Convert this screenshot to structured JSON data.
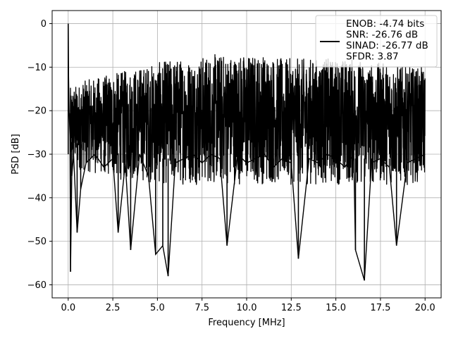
{
  "chart_data": {
    "type": "line",
    "title": "",
    "xlabel": "Frequency [MHz]",
    "ylabel": "PSD [dB]",
    "xlim": [
      -0.9,
      20.9
    ],
    "ylim": [
      -63,
      3
    ],
    "xticks": [
      0.0,
      2.5,
      5.0,
      7.5,
      10.0,
      12.5,
      15.0,
      17.5,
      20.0
    ],
    "xtick_labels": [
      "0.0",
      "2.5",
      "5.0",
      "7.5",
      "10.0",
      "12.5",
      "15.0",
      "17.5",
      "20.0"
    ],
    "yticks": [
      0,
      -10,
      -20,
      -30,
      -40,
      -50,
      -60
    ],
    "ytick_labels": [
      "0",
      "−10",
      "−20",
      "−30",
      "−40",
      "−50",
      "−60"
    ],
    "grid": true,
    "legend_position": "top-right",
    "series": [
      {
        "name": "ENOB: -4.74 bits\nSNR: -26.76 dB\nSINAD: -26.77 dB\nSFDR: 3.87",
        "legend_lines": [
          "ENOB: -4.74 bits",
          "SNR: -26.76 dB",
          "SINAD: -26.77 dB",
          "SFDR: 3.87"
        ],
        "color": "#000000",
        "x": [
          0.0,
          0.02,
          0.05,
          0.1,
          0.13,
          0.2,
          0.3,
          0.5,
          0.7,
          1.0,
          1.5,
          2.0,
          2.5,
          2.8,
          3.2,
          3.5,
          4.0,
          4.5,
          4.9,
          5.3,
          5.6,
          6.0,
          6.5,
          7.0,
          7.5,
          8.0,
          8.5,
          8.9,
          9.5,
          10.0,
          10.5,
          11.0,
          11.5,
          12.0,
          12.5,
          12.9,
          13.5,
          14.0,
          14.5,
          15.0,
          15.5,
          16.0,
          16.1,
          16.6,
          17.0,
          17.5,
          18.0,
          18.4,
          19.0,
          19.5,
          20.0
        ],
        "y": [
          0,
          -12,
          -20,
          -26,
          -57,
          -35,
          -30,
          -48,
          -38,
          -32,
          -30,
          -33,
          -31,
          -48,
          -32,
          -52,
          -30,
          -35,
          -53,
          -51,
          -58,
          -32,
          -31,
          -30,
          -32,
          -30,
          -31,
          -51,
          -30,
          -32,
          -31,
          -30,
          -33,
          -31,
          -32,
          -54,
          -31,
          -32,
          -30,
          -31,
          -33,
          -30,
          -52,
          -59,
          -32,
          -31,
          -33,
          -51,
          -32,
          -31,
          -30
        ]
      }
    ],
    "band_upper_db": [
      -15,
      -13,
      -12,
      -11,
      -10,
      -9,
      -8,
      -8,
      -7,
      -7,
      -7,
      -7,
      -8,
      -8,
      -8,
      -8,
      -8,
      -9,
      -9,
      -10,
      -10
    ],
    "band_lower_db": [
      -33,
      -34,
      -35,
      -36,
      -36,
      -37,
      -37,
      -37,
      -37,
      -37,
      -37,
      -37,
      -37,
      -37,
      -37,
      -37,
      -37,
      -37,
      -37,
      -37,
      -36
    ]
  }
}
